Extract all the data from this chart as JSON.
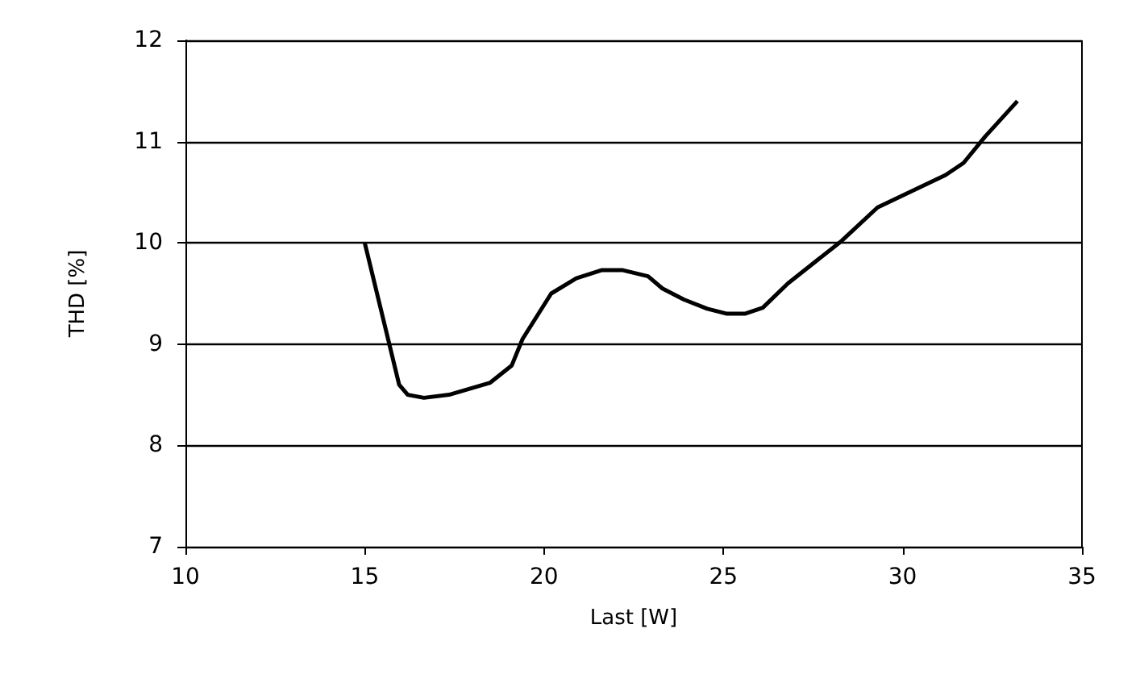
{
  "chart_data": {
    "type": "line",
    "xlabel": "Last [W]",
    "ylabel": "THD [%]",
    "x": [
      15.0,
      15.96,
      16.2,
      16.65,
      17.35,
      18.5,
      19.1,
      19.4,
      20.2,
      20.9,
      21.6,
      22.2,
      22.9,
      23.3,
      23.9,
      24.55,
      25.1,
      25.6,
      26.1,
      26.8,
      28.3,
      29.3,
      31.2,
      31.7,
      32.3,
      33.2
    ],
    "series": [
      {
        "color": "#000000",
        "values": [
          10.0,
          8.6,
          8.5,
          8.47,
          8.5,
          8.62,
          8.79,
          9.05,
          9.5,
          9.65,
          9.73,
          9.73,
          9.67,
          9.55,
          9.44,
          9.35,
          9.3,
          9.3,
          9.36,
          9.6,
          10.02,
          10.35,
          10.67,
          10.79,
          11.05,
          11.4
        ]
      }
    ],
    "xlim": [
      10,
      35
    ],
    "xticks": [
      10,
      15,
      20,
      25,
      30,
      35
    ],
    "ylim": [
      7,
      12
    ],
    "yticks": [
      7,
      8,
      9,
      10,
      11,
      12
    ],
    "grid": "y",
    "marker": "none",
    "line_style": "solid"
  }
}
